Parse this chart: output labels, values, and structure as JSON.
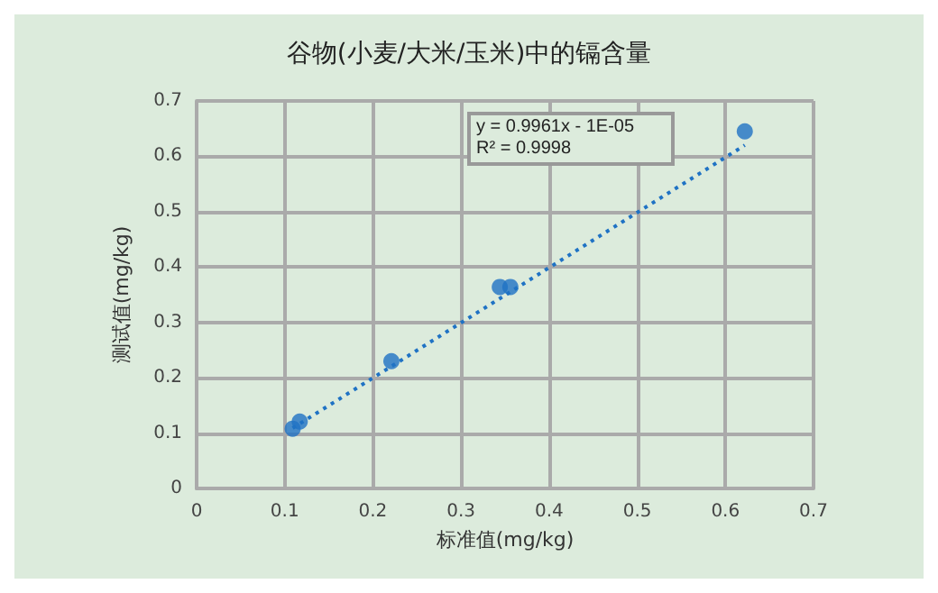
{
  "chart_data": {
    "type": "scatter",
    "title": "谷物(小麦/大米/玉米)中的镉含量",
    "xlabel": "标准值(mg/kg)",
    "ylabel": "测试值(mg/kg)",
    "xlim": [
      0,
      0.7
    ],
    "xticks": [
      0,
      0.1,
      0.2,
      0.3,
      0.4,
      0.5,
      0.6,
      0.7
    ],
    "ylim": [
      0,
      0.7
    ],
    "yticks": [
      0,
      0.1,
      0.2,
      0.3,
      0.4,
      0.5,
      0.6,
      0.7
    ],
    "grid": true,
    "marker": "circle",
    "series": [
      {
        "color": "#1f72c4",
        "x": [
          0.109,
          0.117,
          0.221,
          0.344,
          0.356,
          0.622
        ],
        "values": [
          0.108,
          0.121,
          0.23,
          0.364,
          0.364,
          0.645
        ]
      },
      {
        "type": "line",
        "color": "#1f72c4",
        "line_style": "dotted",
        "marker": "none",
        "x": [
          0.109,
          0.622
        ],
        "values": [
          0.109,
          0.62
        ]
      }
    ],
    "annotations": [
      "y = 0.9961x - 1E-05\nR² = 0.9998"
    ]
  }
}
